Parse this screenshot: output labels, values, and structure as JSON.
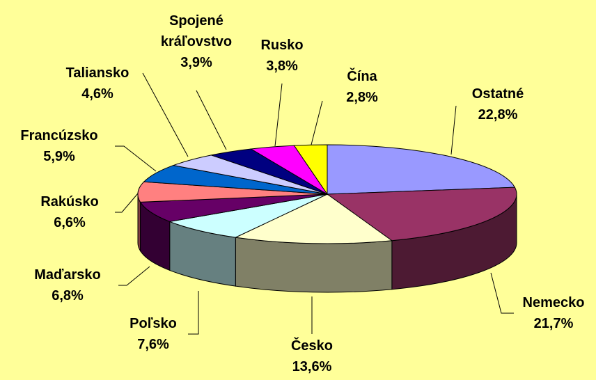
{
  "chart_data": {
    "type": "pie",
    "categories": [
      "Ostatné",
      "Nemecko",
      "Česko",
      "Poľsko",
      "Maďarsko",
      "Rakúsko",
      "Francúzsko",
      "Taliansko",
      "Spojené kráľovstvo",
      "Rusko",
      "Čína"
    ],
    "values": [
      22.8,
      21.7,
      13.6,
      7.6,
      6.8,
      6.6,
      5.9,
      4.6,
      3.9,
      3.8,
      2.8
    ],
    "value_labels": [
      "22,8%",
      "21,7%",
      "13,6%",
      "7,6%",
      "6,8%",
      "6,6%",
      "5,9%",
      "4,6%",
      "3,9%",
      "3,8%",
      "2,8%"
    ],
    "colors": [
      "#9999ff",
      "#993366",
      "#ffffcc",
      "#ccffff",
      "#660066",
      "#ff8080",
      "#0066cc",
      "#ccccff",
      "#000080",
      "#ff00ff",
      "#ffff00"
    ]
  }
}
